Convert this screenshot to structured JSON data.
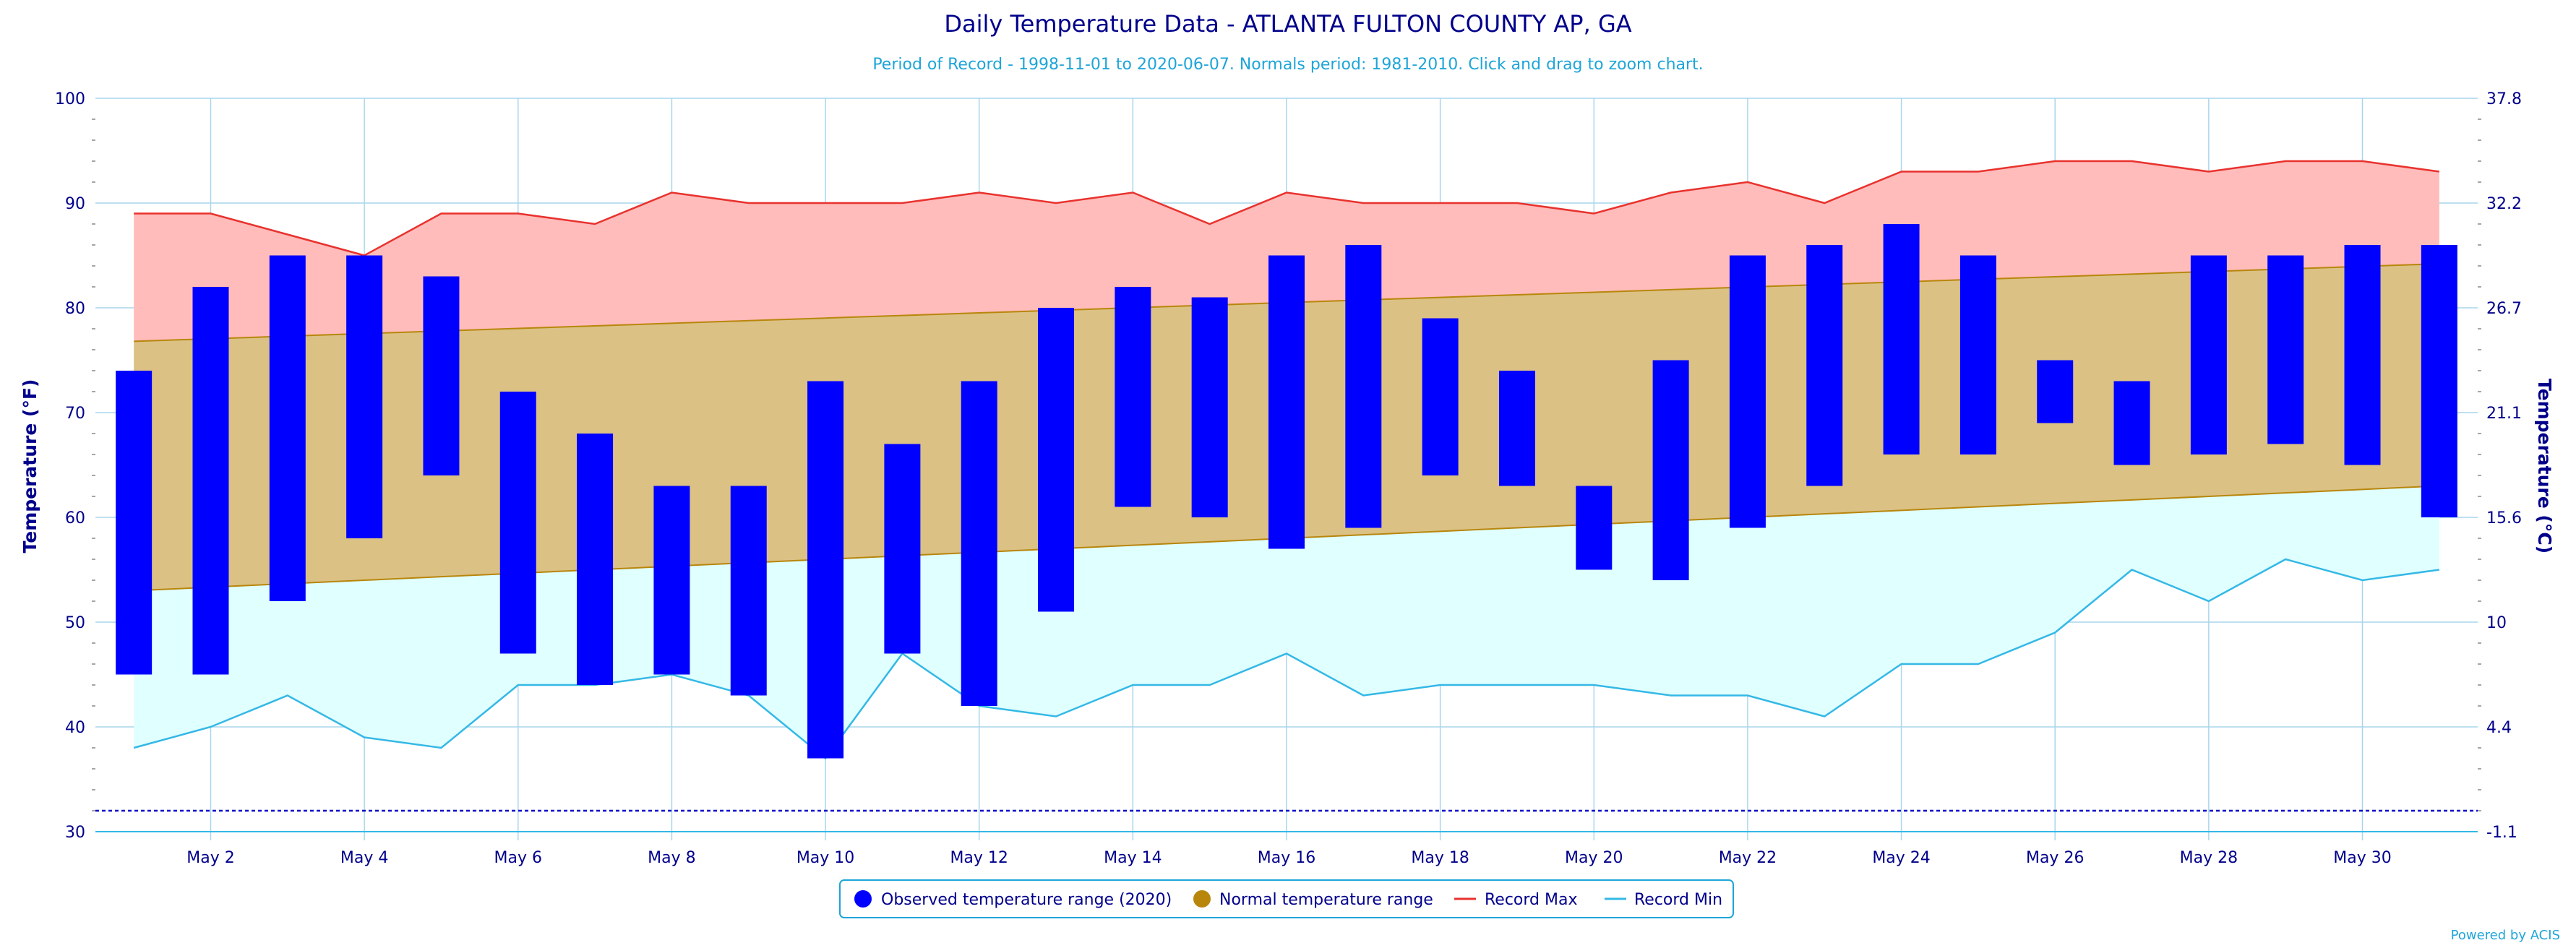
{
  "chart_data": {
    "type": "bar",
    "title": "Daily Temperature Data - ATLANTA FULTON COUNTY AP, GA",
    "subtitle": "Period of Record - 1998-11-01 to 2020-06-07. Normals period: 1981-2010. Click and drag to zoom chart.",
    "ylabel": "Temperature (°F)",
    "y2label": "Temperature (°C)",
    "ylim": [
      30,
      100
    ],
    "y_ticks": [
      30,
      40,
      50,
      60,
      70,
      80,
      90,
      100
    ],
    "y2_ticks": [
      "-1.1",
      "4.4",
      "10",
      "15.6",
      "21.1",
      "26.7",
      "32.2",
      "37.8"
    ],
    "x_tick_labels": [
      "May 2",
      "May 4",
      "May 6",
      "May 8",
      "May 10",
      "May 12",
      "May 14",
      "May 16",
      "May 18",
      "May 20",
      "May 22",
      "May 24",
      "May 26",
      "May 28",
      "May 30"
    ],
    "x_tick_days": [
      2,
      4,
      6,
      8,
      10,
      12,
      14,
      16,
      18,
      20,
      22,
      24,
      26,
      28,
      30
    ],
    "xlim": [
      0.5,
      31.5
    ],
    "days": [
      1,
      2,
      3,
      4,
      5,
      6,
      7,
      8,
      9,
      10,
      11,
      12,
      13,
      14,
      15,
      16,
      17,
      18,
      19,
      20,
      21,
      22,
      23,
      24,
      25,
      26,
      27,
      28,
      29,
      30,
      31
    ],
    "freezing_line": 32,
    "grid": true,
    "legend_position": "bottom-center",
    "series": [
      {
        "name": "Observed temperature range (2020)",
        "color": "#0000ff",
        "low": [
          45,
          45,
          52,
          58,
          64,
          47,
          44,
          45,
          43,
          37,
          47,
          42,
          51,
          61,
          60,
          57,
          59,
          64,
          63,
          55,
          54,
          59,
          63,
          66,
          66,
          69,
          65,
          66,
          67,
          65,
          60
        ],
        "high": [
          74,
          82,
          85,
          85,
          83,
          72,
          68,
          63,
          63,
          73,
          67,
          73,
          80,
          82,
          81,
          85,
          86,
          79,
          74,
          63,
          75,
          85,
          86,
          88,
          85,
          75,
          73,
          85,
          85,
          86,
          86
        ]
      },
      {
        "name": "Normal temperature range",
        "color": "#b8860b",
        "fill": "#dbc184",
        "low_start": 53,
        "low_end": 63,
        "high_start": 76.8,
        "high_end": 84.2
      },
      {
        "name": "Record Max",
        "color": "#e8322e",
        "fill": "#ffbcba",
        "values": [
          89,
          89,
          87,
          85,
          89,
          89,
          88,
          91,
          90,
          90,
          90,
          91,
          90,
          91,
          88,
          91,
          90,
          90,
          90,
          89,
          91,
          92,
          90,
          93,
          93,
          94,
          94,
          93,
          94,
          94,
          93
        ]
      },
      {
        "name": "Record Min",
        "color": "#34b8e6",
        "fill": "#e0ffff",
        "values": [
          38,
          40,
          43,
          39,
          38,
          44,
          44,
          45,
          43,
          37,
          47,
          42,
          41,
          44,
          44,
          47,
          43,
          44,
          44,
          44,
          43,
          43,
          41,
          46,
          46,
          49,
          55,
          52,
          56,
          54,
          55
        ]
      }
    ]
  },
  "credit": "Powered by ACIS"
}
